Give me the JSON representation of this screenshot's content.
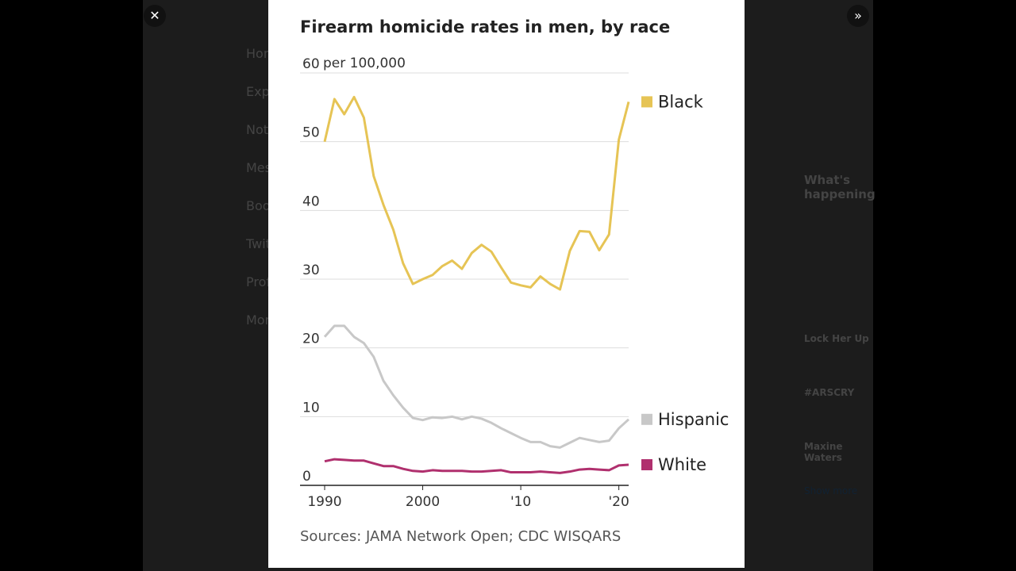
{
  "ui": {
    "nav": [
      "Home",
      "Explore",
      "Notifications",
      "Messages",
      "Bookmarks",
      "Twitter Blue",
      "Profile",
      "More"
    ],
    "sidebar_heading": "What's happening",
    "trends": [
      "Lock Her Up",
      "#ARSCRY",
      "Maxine Waters"
    ],
    "show_more": "Show more"
  },
  "chart_data": {
    "type": "line",
    "title": "Firearm homicide rates in men, by race",
    "y_unit": "per 100,000",
    "source": "Sources: JAMA Network Open; CDC WISQARS",
    "x": [
      1990,
      1991,
      1992,
      1993,
      1994,
      1995,
      1996,
      1997,
      1998,
      1999,
      2000,
      2001,
      2002,
      2003,
      2004,
      2005,
      2006,
      2007,
      2008,
      2009,
      2010,
      2011,
      2012,
      2013,
      2014,
      2015,
      2016,
      2017,
      2018,
      2019,
      2020,
      2021
    ],
    "xlim": [
      1990,
      2021
    ],
    "xticks": [
      1990,
      2000,
      {
        "value": 2010,
        "label": "'10"
      },
      {
        "value": 2020,
        "label": "'20"
      }
    ],
    "ylim": [
      0,
      60
    ],
    "yticks": [
      0,
      10,
      20,
      30,
      40,
      50,
      60
    ],
    "grid": true,
    "series": [
      {
        "name": "Black",
        "color": "#e6c455",
        "values": [
          50,
          56.2,
          54,
          56.5,
          53.5,
          45,
          40.8,
          37.2,
          32.3,
          29.3,
          30,
          30.6,
          31.9,
          32.7,
          31.5,
          33.8,
          35,
          34,
          31.7,
          29.5,
          29.1,
          28.8,
          30.4,
          29.3,
          28.5,
          34.1,
          37,
          36.9,
          34.2,
          36.5,
          50.3,
          55.8
        ]
      },
      {
        "name": "Hispanic",
        "color": "#c8c8c8",
        "values": [
          21.6,
          23.2,
          23.2,
          21.6,
          20.7,
          18.7,
          15.2,
          13.1,
          11.3,
          9.8,
          9.5,
          9.9,
          9.8,
          10,
          9.6,
          10,
          9.7,
          9.1,
          8.3,
          7.6,
          6.9,
          6.3,
          6.3,
          5.7,
          5.5,
          6.2,
          6.9,
          6.6,
          6.3,
          6.5,
          8.3,
          9.6
        ]
      },
      {
        "name": "White",
        "color": "#b0306e",
        "values": [
          3.5,
          3.8,
          3.7,
          3.6,
          3.6,
          3.2,
          2.8,
          2.8,
          2.4,
          2.1,
          2.0,
          2.2,
          2.1,
          2.1,
          2.1,
          2.0,
          2.0,
          2.1,
          2.2,
          1.9,
          1.9,
          1.9,
          2.0,
          1.9,
          1.8,
          2.0,
          2.3,
          2.4,
          2.3,
          2.2,
          2.9,
          3.0
        ]
      }
    ]
  }
}
